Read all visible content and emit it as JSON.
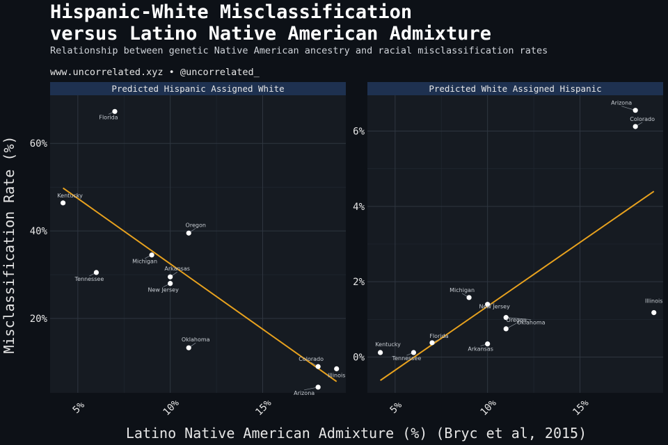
{
  "title_lines": [
    "Hispanic-White Misclassification",
    "versus Latino Native American Admixture"
  ],
  "subtitle": "Relationship between genetic Native American ancestry and racial misclassification rates",
  "source": "www.uncorrelated.xyz • @uncorrelated_",
  "colors": {
    "background": "#0d1117",
    "panel": "#161b22",
    "strip": "#1e3150",
    "grid": "#2f3640",
    "point": "#ffffff",
    "trend": "#e8a21e"
  },
  "chart_data": [
    {
      "type": "scatter",
      "panel_title": "Predicted Hispanic Assigned White",
      "xlabel": "Latino Native American Admixture (%) (Bryc et al, 2015)",
      "ylabel": "Misclassification Rate (%)",
      "xlim": [
        3.5,
        19.5
      ],
      "ylim": [
        3,
        71
      ],
      "x_ticks": [
        5,
        10,
        15
      ],
      "x_tick_labels": [
        "5%",
        "10%",
        "15%"
      ],
      "y_ticks": [
        20,
        40,
        60
      ],
      "y_tick_labels": [
        "20%",
        "40%",
        "60%"
      ],
      "points": [
        {
          "label": "Florida",
          "x": 7,
          "y": 67.3
        },
        {
          "label": "Kentucky",
          "x": 4.2,
          "y": 46.4
        },
        {
          "label": "Oregon",
          "x": 11,
          "y": 39.5
        },
        {
          "label": "Michigan",
          "x": 9,
          "y": 34.5
        },
        {
          "label": "Tennessee",
          "x": 6,
          "y": 30.5
        },
        {
          "label": "Arkansas",
          "x": 10,
          "y": 29.5
        },
        {
          "label": "New Jersey",
          "x": 10,
          "y": 28
        },
        {
          "label": "Oklahoma",
          "x": 11,
          "y": 13.3
        },
        {
          "label": "Colorado",
          "x": 18,
          "y": 9
        },
        {
          "label": "Illinois",
          "x": 19,
          "y": 8.5
        },
        {
          "label": "Arizona",
          "x": 18,
          "y": 4.3
        }
      ],
      "trend": {
        "x": [
          4.2,
          19
        ],
        "y": [
          49.8,
          5.6
        ]
      }
    },
    {
      "type": "scatter",
      "panel_title": "Predicted White Assigned Hispanic",
      "xlim": [
        3.5,
        19.5
      ],
      "ylim": [
        -0.95,
        6.95
      ],
      "x_ticks": [
        5,
        10,
        15
      ],
      "x_tick_labels": [
        "5%",
        "10%",
        "15%"
      ],
      "y_ticks": [
        0,
        2,
        4,
        6
      ],
      "y_tick_labels": [
        "0%",
        "2%",
        "4%",
        "6%"
      ],
      "points": [
        {
          "label": "Arizona",
          "x": 18,
          "y": 6.55
        },
        {
          "label": "Colorado",
          "x": 18,
          "y": 6.12
        },
        {
          "label": "Illinois",
          "x": 19,
          "y": 1.18
        },
        {
          "label": "Michigan",
          "x": 9,
          "y": 1.58
        },
        {
          "label": "New Jersey",
          "x": 10,
          "y": 1.4
        },
        {
          "label": "Oklahoma",
          "x": 11,
          "y": 1.05
        },
        {
          "label": "Oregon",
          "x": 11,
          "y": 0.75
        },
        {
          "label": "Florida",
          "x": 7,
          "y": 0.38
        },
        {
          "label": "Arkansas",
          "x": 10,
          "y": 0.35
        },
        {
          "label": "Kentucky",
          "x": 4.2,
          "y": 0.12
        },
        {
          "label": "Tennessee",
          "x": 6,
          "y": 0.12
        }
      ],
      "trend": {
        "x": [
          4.2,
          19
        ],
        "y": [
          -0.62,
          4.4
        ]
      }
    }
  ]
}
